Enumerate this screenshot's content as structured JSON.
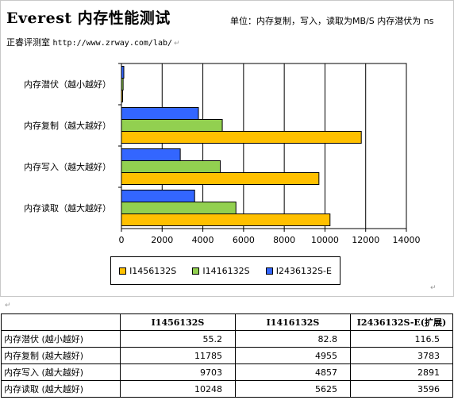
{
  "header": {
    "title": "Everest 内存性能测试",
    "subtitle": "单位：内存复制，写入，读取为MB/S 内存潜伏为 ns",
    "source_label": "正睿评测室",
    "source_url": "http://www.zrway.com/lab/"
  },
  "chart_data": {
    "type": "bar",
    "orientation": "horizontal",
    "categories": [
      "内存潜伏（越小越好）",
      "内存复制（越大越好）",
      "内存写入（越大越好）",
      "内存读取（越大越好）"
    ],
    "series": [
      {
        "name": "I1456132S",
        "values": [
          55.2,
          11785,
          9703,
          10248
        ],
        "color": "#ffc000"
      },
      {
        "name": "I1416132S",
        "values": [
          82.8,
          4955,
          4857,
          5625
        ],
        "color": "#92d050"
      },
      {
        "name": "I2436132S-E",
        "values": [
          116.5,
          3783,
          2891,
          3596
        ],
        "color": "#3366ff"
      }
    ],
    "x_ticks": [
      "0",
      "2000",
      "4000",
      "6000",
      "8000",
      "10000",
      "12000",
      "14000"
    ],
    "xlim": [
      0,
      14000
    ],
    "grid": true,
    "legend_position": "bottom"
  },
  "table": {
    "headers": [
      "",
      "I1456132S",
      "I1416132S",
      "I2436132S-E(扩展)"
    ],
    "rows": [
      {
        "label": "内存潜伏 (越小越好)",
        "values": [
          "55.2",
          "82.8",
          "116.5"
        ]
      },
      {
        "label": "内存复制 (越大越好)",
        "values": [
          "11785",
          "4955",
          "3783"
        ]
      },
      {
        "label": "内存写入 (越大越好)",
        "values": [
          "9703",
          "4857",
          "2891"
        ]
      },
      {
        "label": "内存读取 (越大越好)",
        "values": [
          "10248",
          "5625",
          "3596"
        ]
      }
    ]
  }
}
